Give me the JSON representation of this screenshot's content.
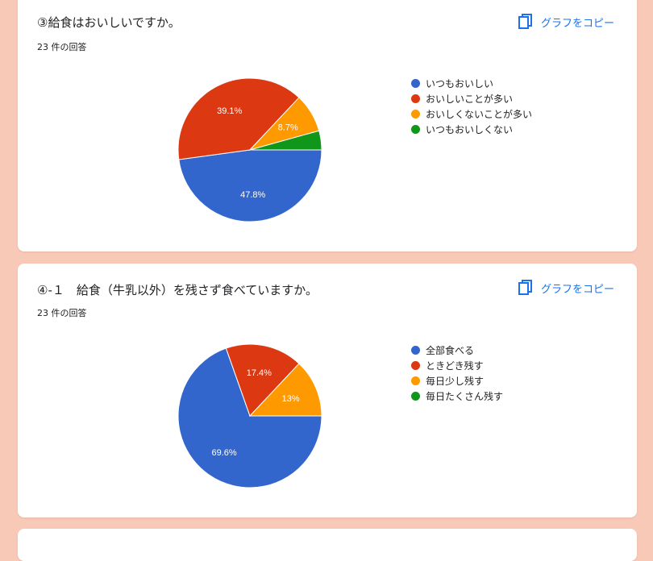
{
  "copy_label": "グラフをコピー",
  "questions": [
    {
      "title": "③給食はおいしいですか。",
      "response_count": "23 件の回答"
    },
    {
      "title": "④-１　給食（牛乳以外）を残さず食べていますか。",
      "response_count": "23 件の回答"
    }
  ],
  "chart_data": [
    {
      "type": "pie",
      "title": "③給食はおいしいですか。",
      "categories": [
        "いつもおいしい",
        "おいしいことが多い",
        "おいしくないことが多い",
        "いつもおいしくない"
      ],
      "values": [
        47.8,
        39.1,
        8.7,
        4.3
      ],
      "labels": [
        "47.8%",
        "39.1%",
        "8.7%",
        ""
      ],
      "colors": [
        "#3366cc",
        "#dc3912",
        "#ff9900",
        "#109618"
      ],
      "legend_position": "right"
    },
    {
      "type": "pie",
      "title": "④-１　給食（牛乳以外）を残さず食べていますか。",
      "categories": [
        "全部食べる",
        "ときどき残す",
        "毎日少し残す",
        "毎日たくさん残す"
      ],
      "values": [
        69.6,
        17.4,
        13,
        0
      ],
      "labels": [
        "69.6%",
        "17.4%",
        "13%",
        ""
      ],
      "colors": [
        "#3366cc",
        "#dc3912",
        "#ff9900",
        "#109618"
      ],
      "legend_position": "right"
    }
  ]
}
